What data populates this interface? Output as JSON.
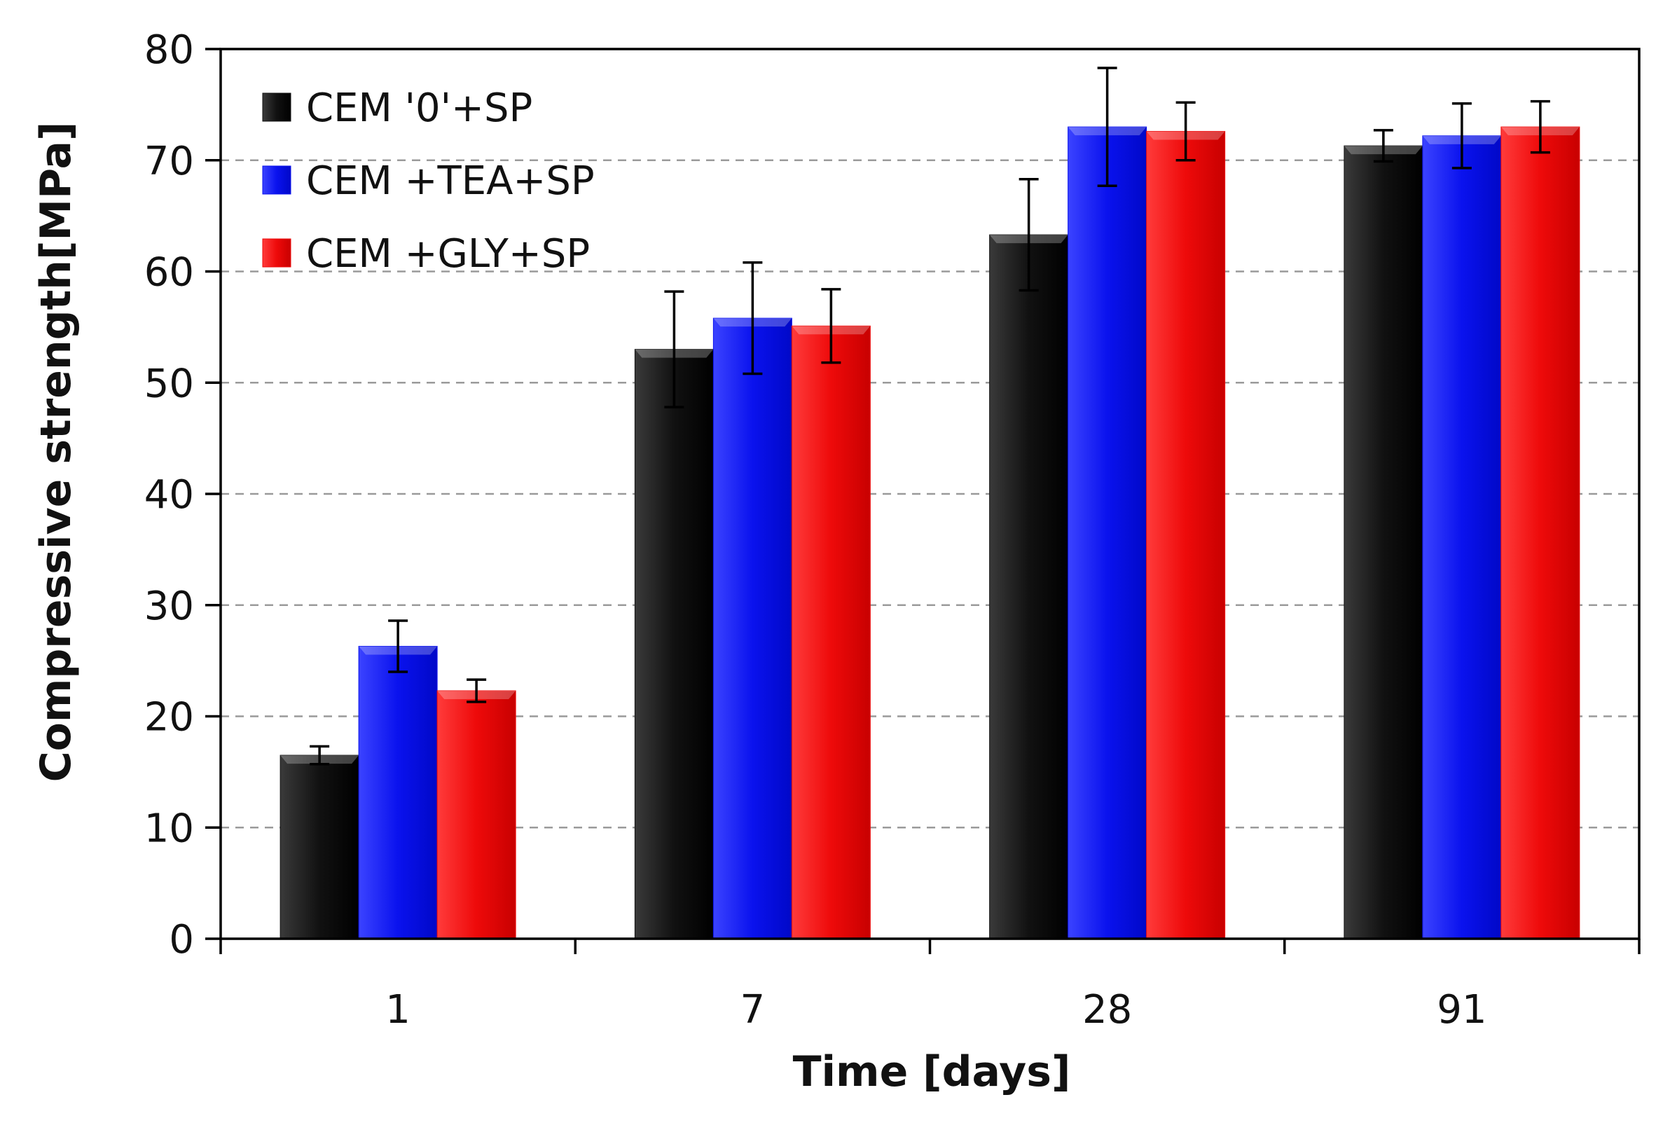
{
  "chart_data": {
    "type": "bar",
    "title": "",
    "xlabel": "Time [days]",
    "ylabel": "Compressive strength[MPa]",
    "ylim": [
      0,
      80
    ],
    "yticks": [
      0,
      10,
      20,
      30,
      40,
      50,
      60,
      70,
      80
    ],
    "grid": "horizontal dashed",
    "legend_position": "top-left",
    "categories": [
      "1",
      "7",
      "28",
      "91"
    ],
    "series": [
      {
        "name": "CEM '0'+SP",
        "color": "#111111",
        "values": [
          16.5,
          53.0,
          63.3,
          71.3
        ],
        "errors": [
          0.8,
          5.2,
          5.0,
          1.4
        ]
      },
      {
        "name": "CEM +TEA+SP",
        "color": "#0a12ee",
        "values": [
          26.3,
          55.8,
          73.0,
          72.2
        ],
        "errors": [
          2.3,
          5.0,
          5.3,
          2.9
        ]
      },
      {
        "name": "CEM +GLY+SP",
        "color": "#ee0a0a",
        "values": [
          22.3,
          55.1,
          72.6,
          73.0
        ],
        "errors": [
          1.0,
          3.3,
          2.6,
          2.3
        ]
      }
    ]
  }
}
